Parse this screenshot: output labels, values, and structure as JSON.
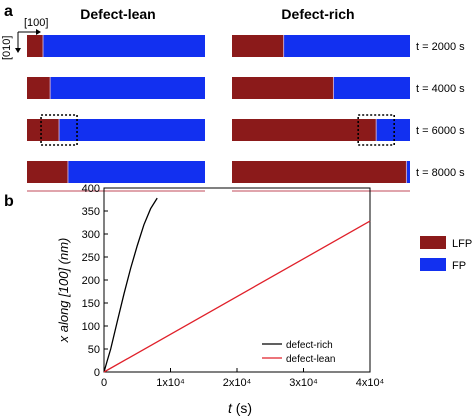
{
  "panel_a": {
    "label": "a",
    "column_titles": [
      "Defect-lean",
      "Defect-rich"
    ],
    "direction_labels": {
      "horizontal": "[100]",
      "vertical": "[010]"
    },
    "rows": [
      {
        "time_label": "t = 2000 s",
        "lean_lfp_fraction": 0.09,
        "rich_lfp_fraction": 0.29,
        "lean_highlight": false,
        "rich_highlight": false
      },
      {
        "time_label": "t = 4000 s",
        "lean_lfp_fraction": 0.13,
        "rich_lfp_fraction": 0.57,
        "lean_highlight": false,
        "rich_highlight": false
      },
      {
        "time_label": "t = 6000 s",
        "lean_lfp_fraction": 0.18,
        "rich_lfp_fraction": 0.81,
        "lean_highlight": true,
        "rich_highlight": true
      },
      {
        "time_label": "t = 8000 s",
        "lean_lfp_fraction": 0.23,
        "rich_lfp_fraction": 0.98,
        "lean_highlight": false,
        "rich_highlight": false
      }
    ],
    "legend": [
      {
        "label": "LFP",
        "color": "#8b1a1a"
      },
      {
        "label": "FP",
        "color": "#1230f0"
      }
    ]
  },
  "panel_b": {
    "label": "b"
  },
  "chart_data": {
    "type": "line",
    "xlabel_var": "t",
    "xlabel_unit": "(s)",
    "ylabel": "x along [100] (nm)",
    "xlim": [
      0,
      40000
    ],
    "ylim": [
      0,
      400
    ],
    "x_ticks": [
      {
        "value": 0,
        "label": "0"
      },
      {
        "value": 10000,
        "label": "1x10⁴"
      },
      {
        "value": 20000,
        "label": "2x10⁴"
      },
      {
        "value": 30000,
        "label": "3x10⁴"
      },
      {
        "value": 40000,
        "label": "4x10⁴"
      }
    ],
    "y_ticks": [
      0,
      50,
      100,
      150,
      200,
      250,
      300,
      350,
      400
    ],
    "series": [
      {
        "name": "defect-rich",
        "color": "#000000",
        "x": [
          0,
          500,
          1000,
          2000,
          3000,
          4000,
          5000,
          6000,
          7000,
          8000
        ],
        "y": [
          0,
          25,
          50,
          110,
          170,
          225,
          275,
          320,
          355,
          378
        ]
      },
      {
        "name": "defect-lean",
        "color": "#e0202a",
        "x": [
          0,
          40000
        ],
        "y": [
          0,
          328
        ]
      }
    ],
    "legend_position": "bottom-right"
  }
}
